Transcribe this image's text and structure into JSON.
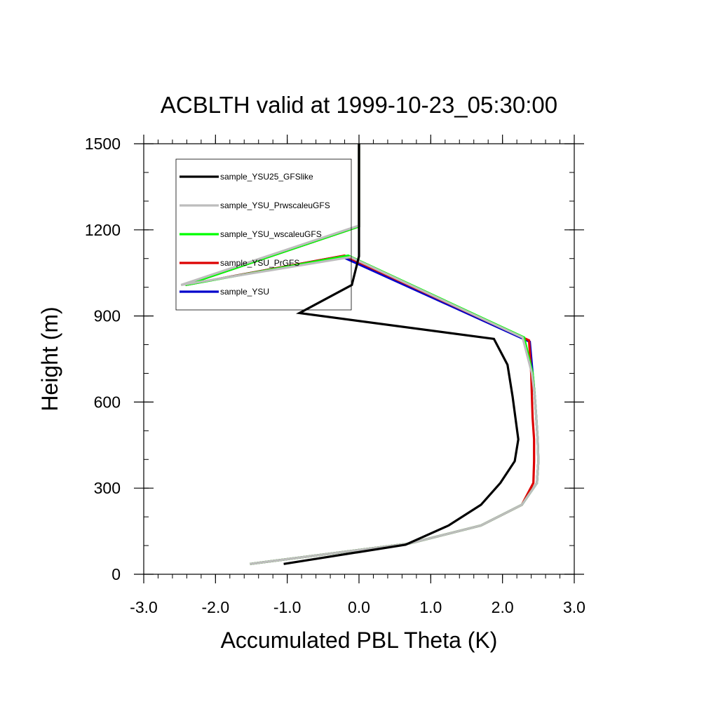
{
  "chart_data": {
    "type": "line",
    "title": "ACBLTH valid at 1999-10-23_05:30:00",
    "xlabel": "Accumulated PBL Theta (K)",
    "ylabel": "Height (m)",
    "xlim": [
      -3.0,
      3.0
    ],
    "ylim": [
      0,
      1500
    ],
    "xticks": [
      "-3.0",
      "-2.0",
      "-1.0",
      "0.0",
      "1.0",
      "2.0",
      "3.0"
    ],
    "yticks": [
      "0",
      "300",
      "600",
      "900",
      "1200",
      "1500"
    ],
    "legend_position": "top-left",
    "grid": false,
    "series": [
      {
        "name": "sample_YSU",
        "color": "#0000cc",
        "points": [
          [
            -1.52,
            36
          ],
          [
            0.7,
            107
          ],
          [
            1.7,
            170
          ],
          [
            2.27,
            242
          ],
          [
            2.48,
            318
          ],
          [
            2.5,
            394
          ],
          [
            2.49,
            470
          ],
          [
            2.47,
            545
          ],
          [
            2.45,
            620
          ],
          [
            2.42,
            700
          ],
          [
            2.38,
            810
          ],
          [
            -0.25,
            1108
          ],
          [
            -2.42,
            1008
          ],
          [
            0.0,
            1212
          ],
          [
            0.0,
            1500
          ]
        ]
      },
      {
        "name": "sample_YSU_PrGFS",
        "color": "#dd0000",
        "points": [
          [
            -1.52,
            36
          ],
          [
            0.7,
            107
          ],
          [
            1.7,
            170
          ],
          [
            2.27,
            242
          ],
          [
            2.43,
            318
          ],
          [
            2.44,
            394
          ],
          [
            2.44,
            470
          ],
          [
            2.42,
            545
          ],
          [
            2.41,
            620
          ],
          [
            2.4,
            700
          ],
          [
            2.37,
            815
          ],
          [
            -0.2,
            1110
          ],
          [
            -2.42,
            1008
          ],
          [
            0.0,
            1212
          ],
          [
            0.0,
            1500
          ]
        ]
      },
      {
        "name": "sample_YSU_wscaleuGFS",
        "color": "#00ff00",
        "points": [
          [
            -1.52,
            36
          ],
          [
            0.7,
            107
          ],
          [
            1.7,
            170
          ],
          [
            2.27,
            242
          ],
          [
            2.48,
            318
          ],
          [
            2.5,
            394
          ],
          [
            2.49,
            470
          ],
          [
            2.47,
            545
          ],
          [
            2.45,
            620
          ],
          [
            2.42,
            700
          ],
          [
            2.3,
            825
          ],
          [
            -0.15,
            1110
          ],
          [
            -2.42,
            1008
          ],
          [
            0.0,
            1212
          ],
          [
            0.0,
            1500
          ]
        ]
      },
      {
        "name": "sample_YSU_PrwscaleuGFS",
        "color": "#bdbdbd",
        "points": [
          [
            -1.52,
            36
          ],
          [
            0.7,
            107
          ],
          [
            1.7,
            170
          ],
          [
            2.27,
            242
          ],
          [
            2.48,
            318
          ],
          [
            2.5,
            394
          ],
          [
            2.49,
            470
          ],
          [
            2.47,
            545
          ],
          [
            2.45,
            620
          ],
          [
            2.41,
            700
          ],
          [
            2.28,
            825
          ],
          [
            -0.12,
            1105
          ],
          [
            -2.48,
            1008
          ],
          [
            0.0,
            1215
          ],
          [
            0.0,
            1500
          ]
        ]
      },
      {
        "name": "sample_YSU25_GFSlike",
        "color": "#000000",
        "points": [
          [
            -1.05,
            36
          ],
          [
            0.65,
            103
          ],
          [
            1.25,
            170
          ],
          [
            1.7,
            242
          ],
          [
            1.97,
            318
          ],
          [
            2.17,
            394
          ],
          [
            2.22,
            470
          ],
          [
            2.18,
            545
          ],
          [
            2.14,
            620
          ],
          [
            2.07,
            730
          ],
          [
            1.88,
            820
          ],
          [
            -0.83,
            910
          ],
          [
            -0.1,
            1008
          ],
          [
            0.0,
            1108
          ],
          [
            0.0,
            1500
          ]
        ]
      }
    ],
    "legend_order": [
      "sample_YSU25_GFSlike",
      "sample_YSU_PrwscaleuGFS",
      "sample_YSU_wscaleuGFS",
      "sample_YSU_PrGFS",
      "sample_YSU"
    ]
  }
}
